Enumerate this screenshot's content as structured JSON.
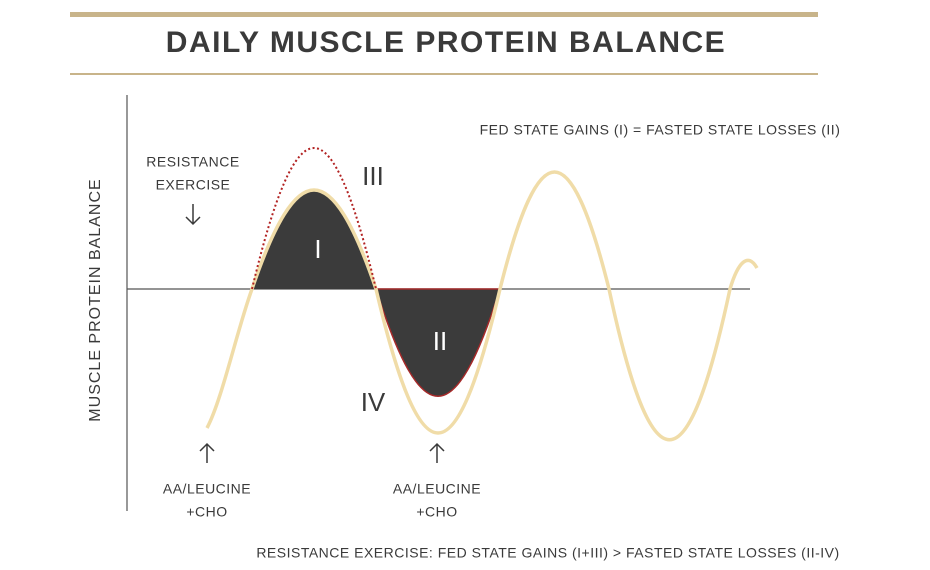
{
  "title": "DAILY MUSCLE PROTEIN BALANCE",
  "y_axis_label": "MUSCLE PROTEIN BALANCE",
  "annotations": {
    "equality": "FED STATE GAINS (I) = FASTED STATE LOSSES (II)",
    "resistance_exercise": [
      "RESISTANCE",
      "EXERCISE"
    ],
    "feeding_1": [
      "AA/LEUCINE",
      "+CHO"
    ],
    "feeding_2": [
      "AA/LEUCINE",
      "+CHO"
    ],
    "conclusion": "RESISTANCE EXERCISE: FED STATE GAINS (I+III) > FASTED STATE LOSSES (II-IV)"
  },
  "regions": [
    "I",
    "II",
    "III",
    "IV"
  ]
}
